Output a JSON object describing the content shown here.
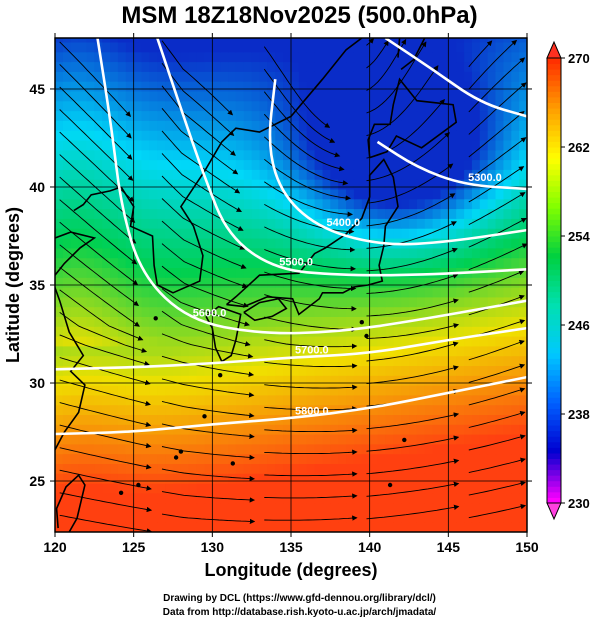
{
  "title": "MSM 18Z18Nov2025 (500.0hPa)",
  "credits": {
    "line1": "Drawing by DCL (https://www.gfd-dennou.org/library/dcl/)",
    "line2": "Data from http://database.rish.kyoto-u.ac.jp/arch/jmadata/"
  },
  "chart_data": {
    "type": "heatmap",
    "title": "MSM 18Z18Nov2025 (500.0hPa)",
    "xlabel": "Longitude (degrees)",
    "ylabel": "Latitude  (degrees)",
    "xlim": [
      120,
      150
    ],
    "ylim": [
      22.4,
      47.6
    ],
    "x_ticks": [
      "120",
      "125",
      "130",
      "135",
      "140",
      "145",
      "150"
    ],
    "y_ticks": [
      "25",
      "30",
      "35",
      "40",
      "45"
    ],
    "grid": "on, every 5 degrees",
    "colorbar": {
      "range": [
        230,
        270
      ],
      "labels": [
        "270",
        "262",
        "254",
        "246",
        "238",
        "230"
      ],
      "colors": [
        "#ff00ff",
        "#0000d0",
        "#0060ff",
        "#00c8ff",
        "#00e0b0",
        "#00d040",
        "#80ff00",
        "#ffff00",
        "#ffa000",
        "#ff3000"
      ],
      "orientation": "vertical, right, with triangle extensions"
    },
    "field_colors": {
      "cold": "#0a2cc8",
      "cool": "#00d8f8",
      "mid": "#00d050",
      "warm": "#f0e000",
      "hot": "#ff4010"
    },
    "contours": [
      {
        "label": "5300.0",
        "points": [
          [
            140.5,
            42.3
          ],
          [
            143,
            41
          ],
          [
            146,
            40.1
          ],
          [
            150,
            39.9
          ]
        ]
      },
      {
        "label": "5400.0",
        "points": [
          [
            134,
            45.5
          ],
          [
            133.5,
            42
          ],
          [
            134.5,
            39.5
          ],
          [
            137,
            37.8
          ],
          [
            141,
            37
          ],
          [
            145,
            37.2
          ],
          [
            150,
            37.8
          ]
        ]
      },
      {
        "label": "5500.0",
        "points": [
          [
            126.5,
            47.6
          ],
          [
            128,
            44
          ],
          [
            129.5,
            40.5
          ],
          [
            131,
            37.5
          ],
          [
            134,
            35.8
          ],
          [
            138,
            35.5
          ],
          [
            143,
            35.5
          ],
          [
            150,
            35.8
          ]
        ]
      },
      {
        "label": "5600.0",
        "points": [
          [
            122.7,
            47.6
          ],
          [
            123.6,
            43
          ],
          [
            124.2,
            39
          ],
          [
            125.5,
            35.5
          ],
          [
            128.5,
            33.2
          ],
          [
            133,
            32.5
          ],
          [
            138,
            32.6
          ],
          [
            143,
            33.2
          ],
          [
            150,
            34.2
          ]
        ]
      },
      {
        "label": "5700.0",
        "points": [
          [
            120,
            30.7
          ],
          [
            125,
            30.8
          ],
          [
            130,
            31
          ],
          [
            135,
            31.3
          ],
          [
            140,
            31.5
          ],
          [
            145,
            32.2
          ],
          [
            150,
            32.8
          ]
        ]
      },
      {
        "label": "5800.0",
        "points": [
          [
            120,
            27.4
          ],
          [
            125,
            27.5
          ],
          [
            130,
            27.9
          ],
          [
            135,
            28.2
          ],
          [
            140,
            28.7
          ],
          [
            145,
            29.5
          ],
          [
            150,
            30.3
          ]
        ]
      },
      {
        "label": "",
        "points": [
          [
            141,
            47.6
          ],
          [
            144,
            46
          ],
          [
            147,
            44.3
          ],
          [
            150,
            43.6
          ]
        ]
      }
    ],
    "wind": "streamlines, predominantly westerly to west-southwesterly"
  }
}
